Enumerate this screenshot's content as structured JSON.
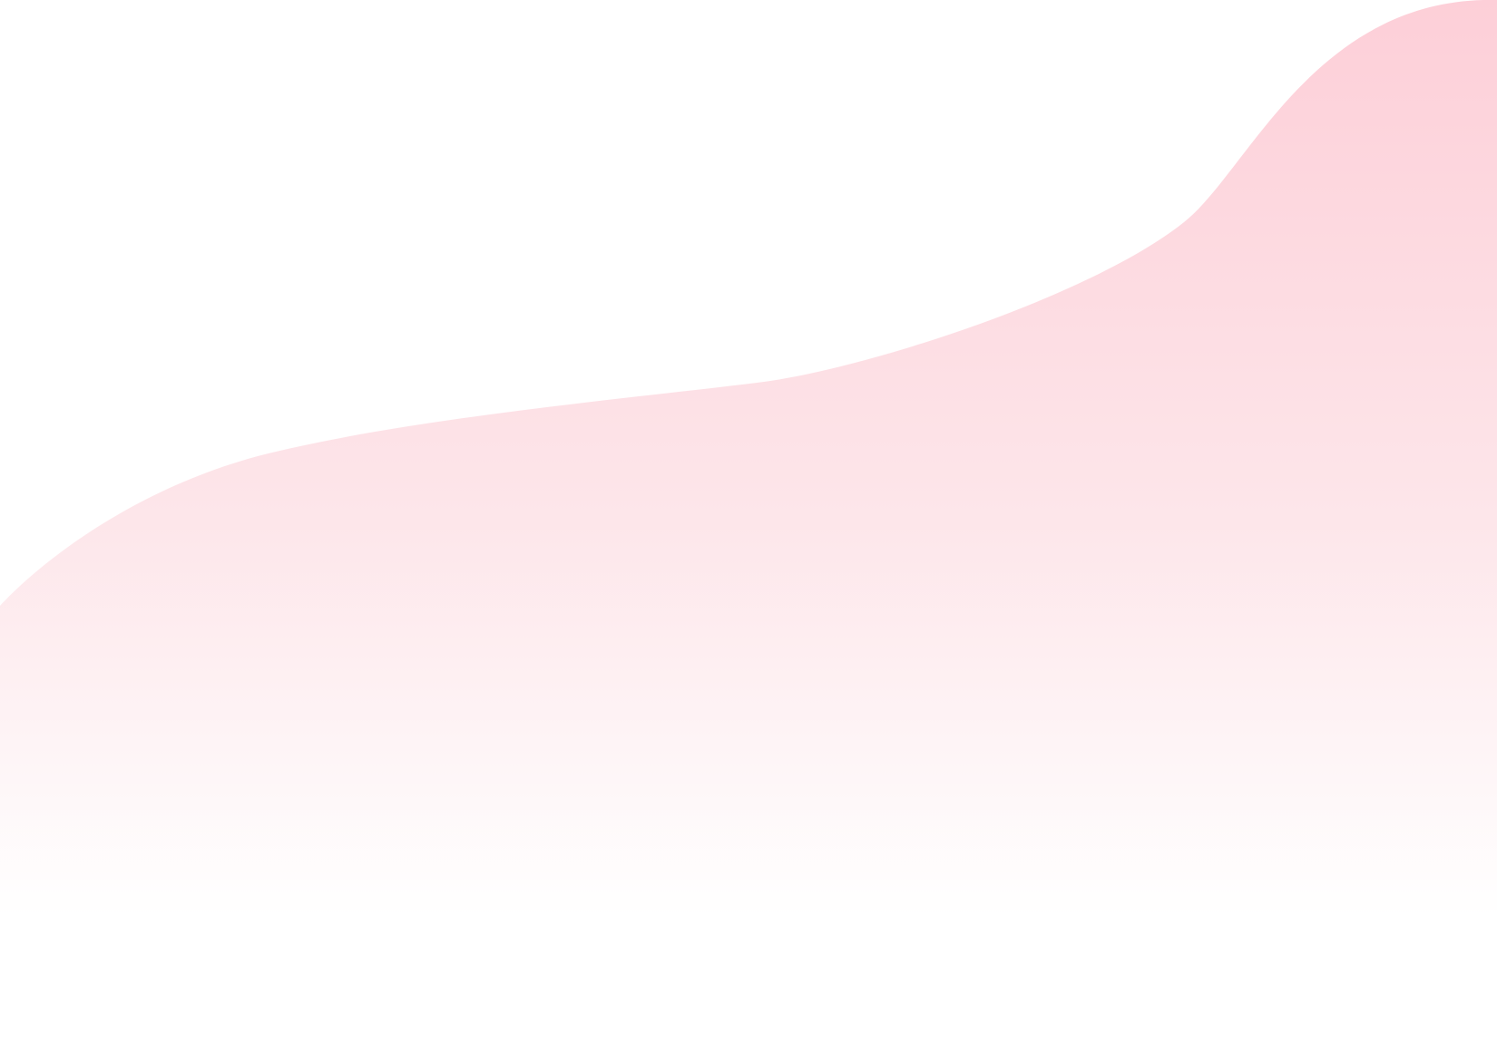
{
  "background": {
    "base_color": "#ffffff",
    "blob_gradient_top": "#fdcfd8",
    "blob_gradient_bottom": "#ffffff"
  }
}
